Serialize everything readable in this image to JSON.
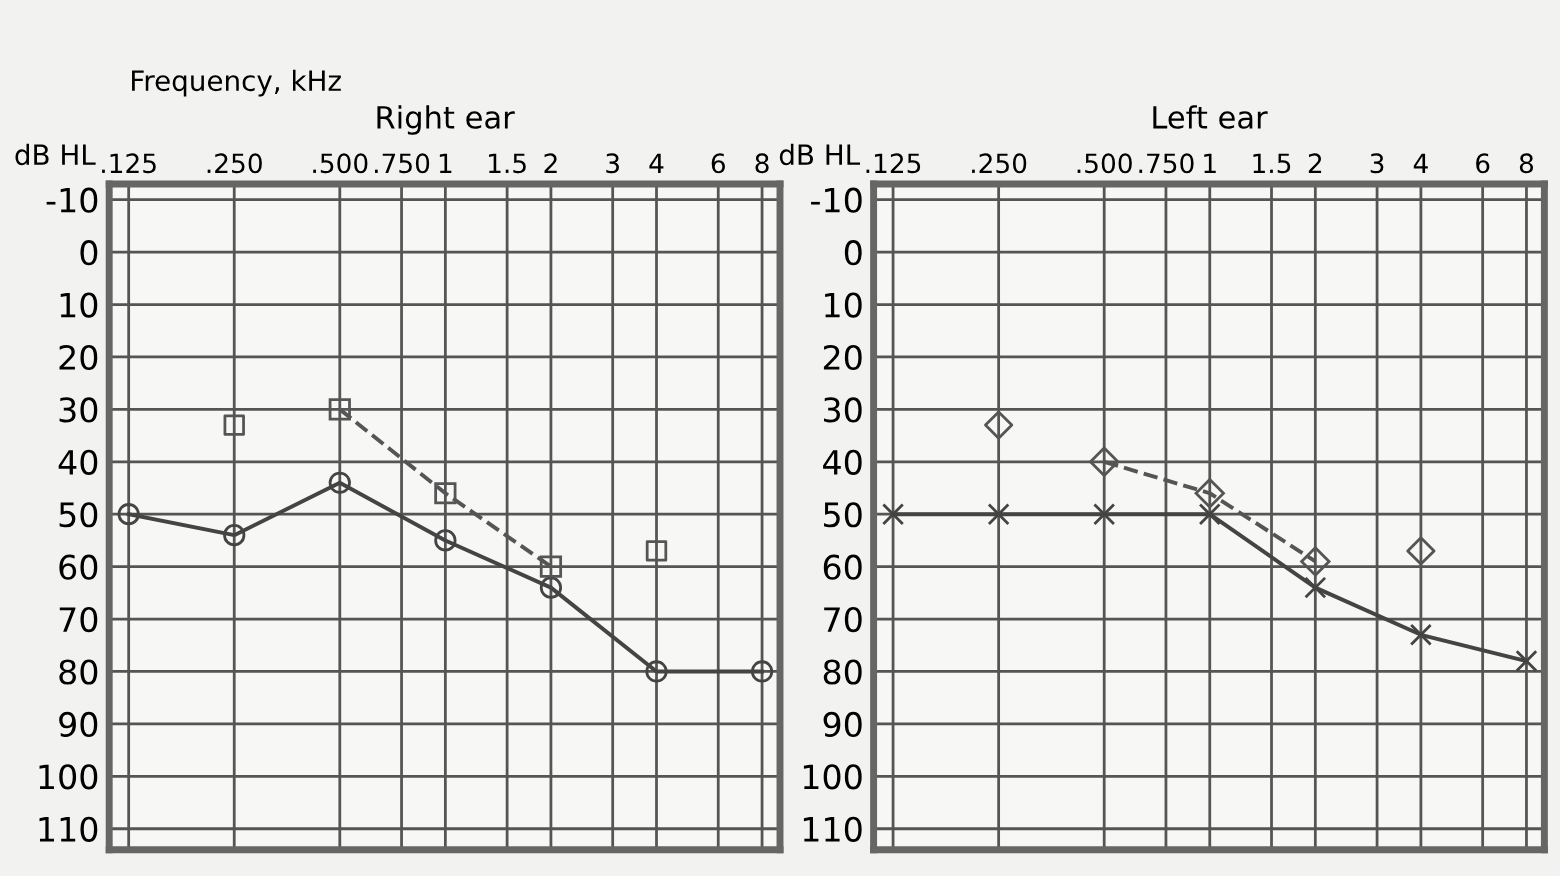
{
  "chart_data": [
    {
      "type": "line",
      "title": "Right ear",
      "xlabel": "Frequency, kHz",
      "ylabel": "dB HL",
      "log": "x",
      "xlim": [
        0.11,
        9
      ],
      "xticks": [
        {
          "value": 0.125,
          "label": ".125"
        },
        {
          "value": 0.25,
          "label": ".250"
        },
        {
          "value": 0.5,
          "label": ".500"
        },
        {
          "value": 0.75,
          "label": ".750"
        },
        1,
        1.5,
        2,
        3,
        4,
        6,
        8
      ],
      "ylim": [
        114,
        -13
      ],
      "yticks": [
        -10,
        0,
        10,
        20,
        30,
        40,
        50,
        60,
        70,
        80,
        90,
        100,
        110
      ],
      "grid": true,
      "series": [
        {
          "type": "line",
          "color": "#444444",
          "marker": "circle",
          "line_style": "solid",
          "x": [
            0.125,
            0.25,
            0.5,
            1,
            2,
            4,
            8
          ],
          "values": [
            50,
            54,
            44,
            55,
            64,
            80,
            80
          ]
        },
        {
          "type": "line",
          "color": "#555555",
          "marker": "square",
          "line_style": "dashed",
          "x": [
            0.5,
            1,
            2
          ],
          "values": [
            30,
            46,
            60
          ]
        },
        {
          "type": "scatter",
          "color": "#555555",
          "marker": "square",
          "x": [
            0.25,
            4
          ],
          "values": [
            33,
            57
          ]
        }
      ]
    },
    {
      "type": "line",
      "title": "Left ear",
      "ylabel": "dB HL",
      "log": "x",
      "xlim": [
        0.11,
        9
      ],
      "xticks": [
        {
          "value": 0.125,
          "label": ".125"
        },
        {
          "value": 0.25,
          "label": ".250"
        },
        {
          "value": 0.5,
          "label": ".500"
        },
        {
          "value": 0.75,
          "label": ".750"
        },
        1,
        1.5,
        2,
        3,
        4,
        6,
        8
      ],
      "ylim": [
        114,
        -13
      ],
      "yticks": [
        -10,
        0,
        10,
        20,
        30,
        40,
        50,
        60,
        70,
        80,
        90,
        100,
        110
      ],
      "grid": true,
      "series": [
        {
          "type": "line",
          "color": "#444444",
          "marker": "cross",
          "line_style": "solid",
          "x": [
            0.125,
            0.25,
            0.5,
            1,
            2,
            4,
            8
          ],
          "values": [
            50,
            50,
            50,
            50,
            64,
            73,
            78
          ]
        },
        {
          "type": "line",
          "color": "#555555",
          "marker": "diamond",
          "line_style": "dashed",
          "x": [
            0.5,
            1,
            2
          ],
          "values": [
            40,
            46,
            59
          ]
        },
        {
          "type": "scatter",
          "color": "#555555",
          "marker": "diamond",
          "x": [
            0.25,
            4
          ],
          "values": [
            33,
            57
          ]
        }
      ]
    }
  ]
}
